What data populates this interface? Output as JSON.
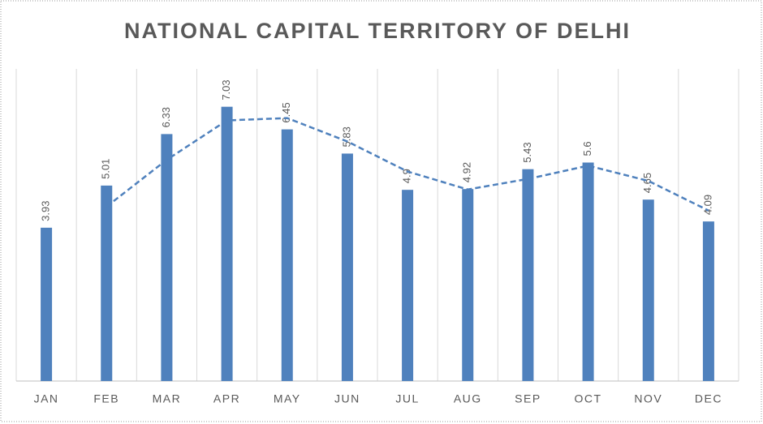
{
  "chart_data": {
    "type": "bar",
    "title": "NATIONAL CAPITAL TERRITORY OF DELHI",
    "categories": [
      "JAN",
      "FEB",
      "MAR",
      "APR",
      "MAY",
      "JUN",
      "JUL",
      "AUG",
      "SEP",
      "OCT",
      "NOV",
      "DEC"
    ],
    "values": [
      3.93,
      5.01,
      6.33,
      7.03,
      6.45,
      5.83,
      4.9,
      4.92,
      5.43,
      5.6,
      4.65,
      4.09
    ],
    "color": "#4f81bd",
    "trendline": {
      "values": [
        null,
        4.47,
        5.67,
        6.68,
        6.74,
        6.14,
        5.37,
        4.91,
        5.18,
        5.52,
        5.13,
        4.37
      ],
      "color": "#4f81bd",
      "dashed": true
    },
    "ylim": [
      0,
      8
    ],
    "grid": true
  }
}
